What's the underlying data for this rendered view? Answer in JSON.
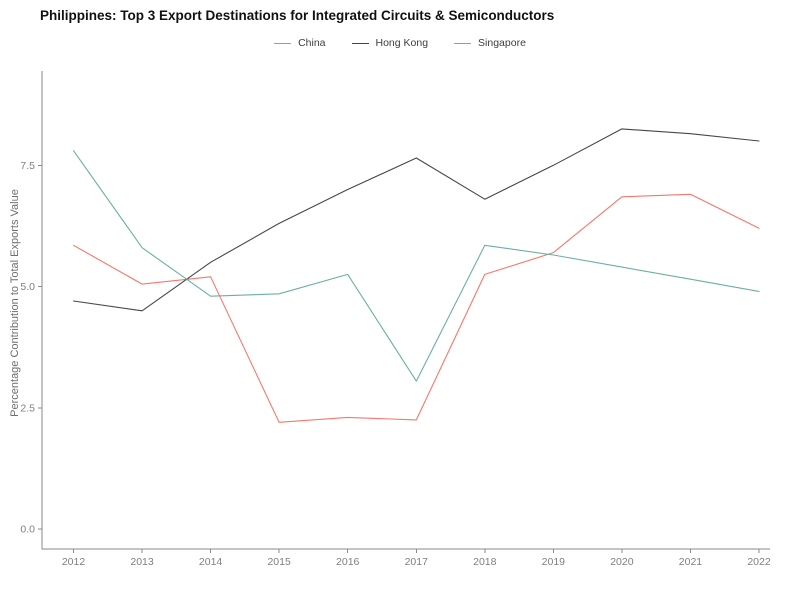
{
  "title": "Philippines: Top 3 Export Destinations for Integrated Circuits & Semiconductors",
  "chart_data": {
    "type": "line",
    "title": "Philippines: Top 3 Export Destinations for Integrated Circuits & Semiconductors",
    "xlabel": "",
    "ylabel": "Percentage Contribution to Total Exports Value",
    "categories": [
      "2012",
      "2013",
      "2014",
      "2015",
      "2016",
      "2017",
      "2018",
      "2019",
      "2020",
      "2021",
      "2022"
    ],
    "series": [
      {
        "name": "China",
        "color": "#f8766d",
        "values": [
          5.85,
          5.05,
          5.2,
          2.2,
          2.3,
          2.25,
          5.25,
          5.7,
          6.85,
          6.9,
          6.2
        ]
      },
      {
        "name": "Hong Kong",
        "color": "#474747",
        "values": [
          4.7,
          4.5,
          5.5,
          6.3,
          7.0,
          7.65,
          6.8,
          7.5,
          8.25,
          8.15,
          8.0
        ]
      },
      {
        "name": "Singapore",
        "color": "#6ab0a4",
        "values": [
          7.8,
          5.8,
          4.8,
          4.85,
          5.25,
          3.05,
          5.85,
          5.65,
          5.4,
          5.15,
          4.9
        ]
      }
    ],
    "yticks": [
      0.0,
      2.5,
      5.0,
      7.5
    ],
    "ytick_labels": [
      "0.0",
      "2.5",
      "5.0",
      "7.5"
    ],
    "ylim": [
      0,
      9.4
    ],
    "grid": false,
    "legend_position": "top-center",
    "colors": {
      "axis": "#8a8a8a",
      "tick_label": "#7f7f7f",
      "background": "#ffffff"
    }
  }
}
